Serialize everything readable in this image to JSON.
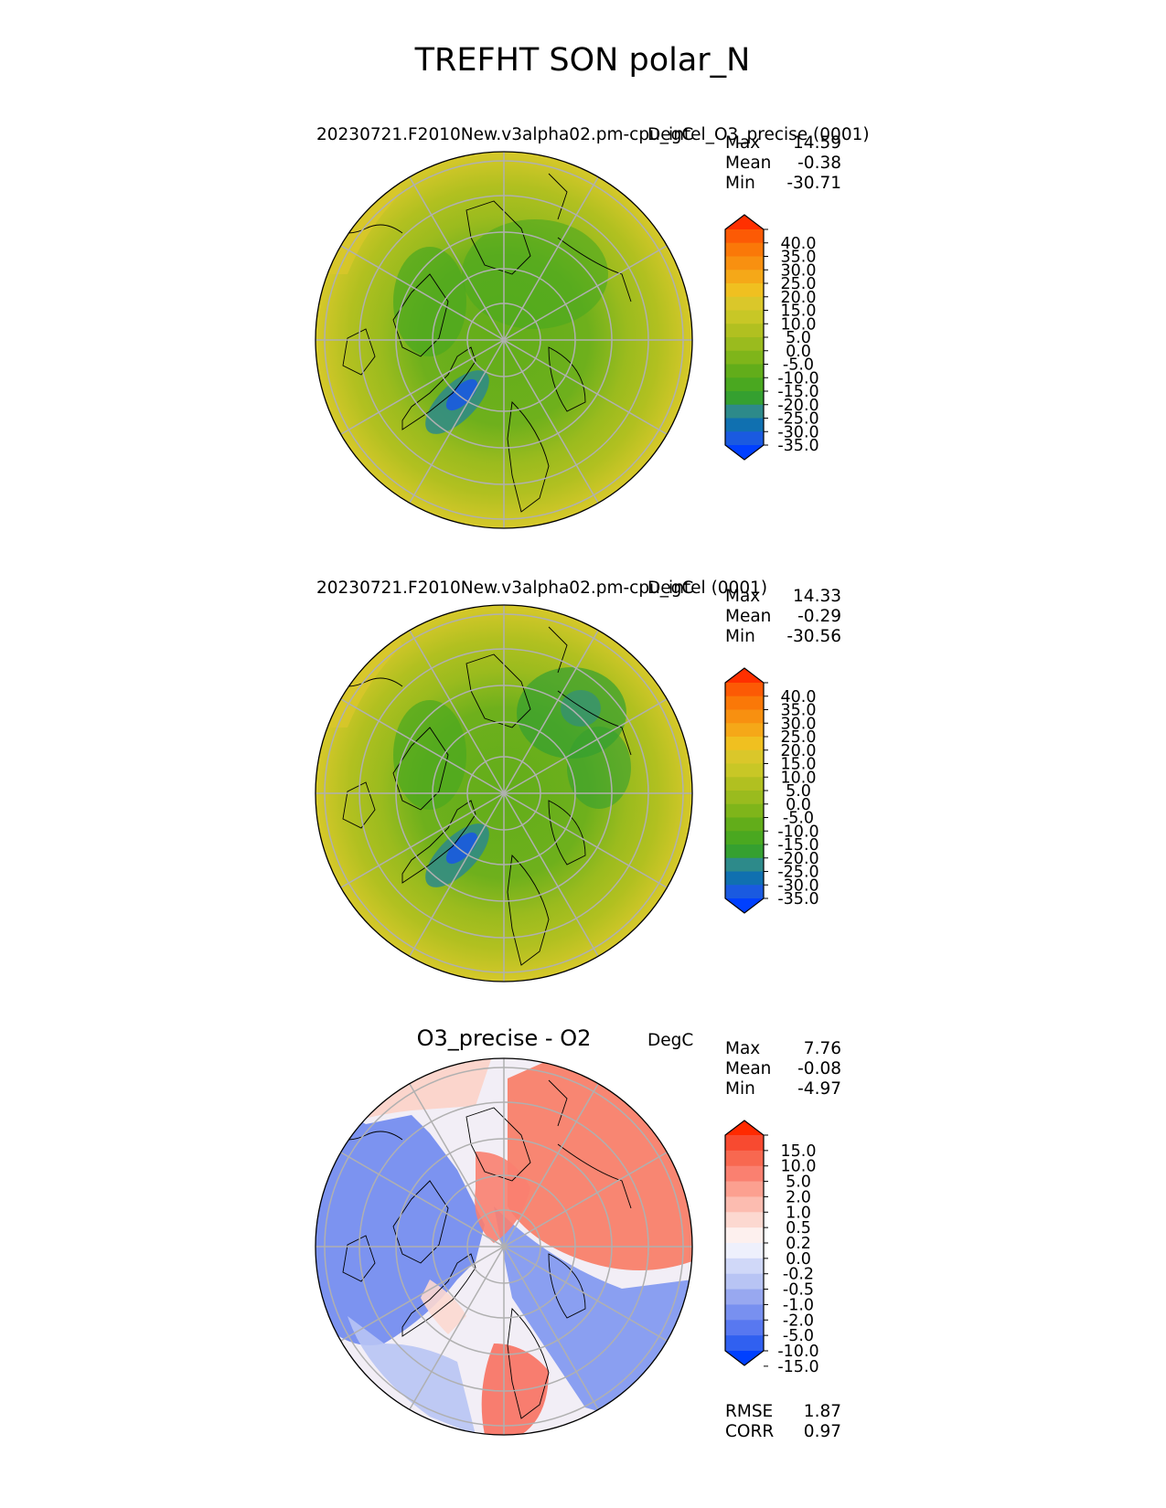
{
  "figure_title": "TREFHT SON polar_N",
  "colors": {
    "full_field": [
      "#0040ff",
      "#1a5ae0",
      "#1070b0",
      "#2d8a8a",
      "#35a030",
      "#4aa820",
      "#62ad1a",
      "#7fb51a",
      "#9abb1e",
      "#b1c020",
      "#c8c726",
      "#dac72a",
      "#f0c020",
      "#f5a818",
      "#f89010",
      "#fa7808",
      "#fc5a05",
      "#ff3000"
    ],
    "difference": [
      "#0040ff",
      "#3060f0",
      "#5878f0",
      "#7890f0",
      "#98a8f0",
      "#b8c4f4",
      "#d0d8f8",
      "#eef0fc",
      "#fdf0ee",
      "#fcd8d0",
      "#fcbcb0",
      "#fca090",
      "#fa8070",
      "#f86850",
      "#f84a30",
      "#ff2a00"
    ]
  },
  "chart_data": [
    {
      "type": "heatmap",
      "projection": "polar stereographic (north)",
      "title": "20230721.F2010New.v3alpha02.pm-cpu_intel_O3_precise (0001)",
      "units": "DegC",
      "stats": [
        {
          "label": "Max",
          "value": "14.59"
        },
        {
          "label": "Mean",
          "value": "-0.38"
        },
        {
          "label": "Min",
          "value": "-30.71"
        }
      ],
      "colorbar_ticks": [
        "40.0",
        "35.0",
        "30.0",
        "25.0",
        "20.0",
        "15.0",
        "10.0",
        "5.0",
        "0.0",
        "-5.0",
        "-10.0",
        "-15.0",
        "-20.0",
        "-25.0",
        "-30.0",
        "-35.0"
      ],
      "colorbar_extend": "both"
    },
    {
      "type": "heatmap",
      "projection": "polar stereographic (north)",
      "title": "20230721.F2010New.v3alpha02.pm-cpu_intel (0001)",
      "units": "DegC",
      "stats": [
        {
          "label": "Max",
          "value": "14.33"
        },
        {
          "label": "Mean",
          "value": "-0.29"
        },
        {
          "label": "Min",
          "value": "-30.56"
        }
      ],
      "colorbar_ticks": [
        "40.0",
        "35.0",
        "30.0",
        "25.0",
        "20.0",
        "15.0",
        "10.0",
        "5.0",
        "0.0",
        "-5.0",
        "-10.0",
        "-15.0",
        "-20.0",
        "-25.0",
        "-30.0",
        "-35.0"
      ],
      "colorbar_extend": "both"
    },
    {
      "type": "heatmap",
      "projection": "polar stereographic (north)",
      "title": "O3_precise - O2",
      "units": "DegC",
      "stats": [
        {
          "label": "Max",
          "value": "7.76"
        },
        {
          "label": "Mean",
          "value": "-0.08"
        },
        {
          "label": "Min",
          "value": "-4.97"
        }
      ],
      "colorbar_ticks": [
        "15.0",
        "10.0",
        "5.0",
        "2.0",
        "1.0",
        "0.5",
        "0.2",
        "0.0",
        "-0.2",
        "-0.5",
        "-1.0",
        "-2.0",
        "-5.0",
        "-10.0",
        "-15.0"
      ],
      "colorbar_extend": "both",
      "metrics": [
        {
          "label": "RMSE",
          "value": "1.87"
        },
        {
          "label": "CORR",
          "value": "0.97"
        }
      ]
    }
  ]
}
